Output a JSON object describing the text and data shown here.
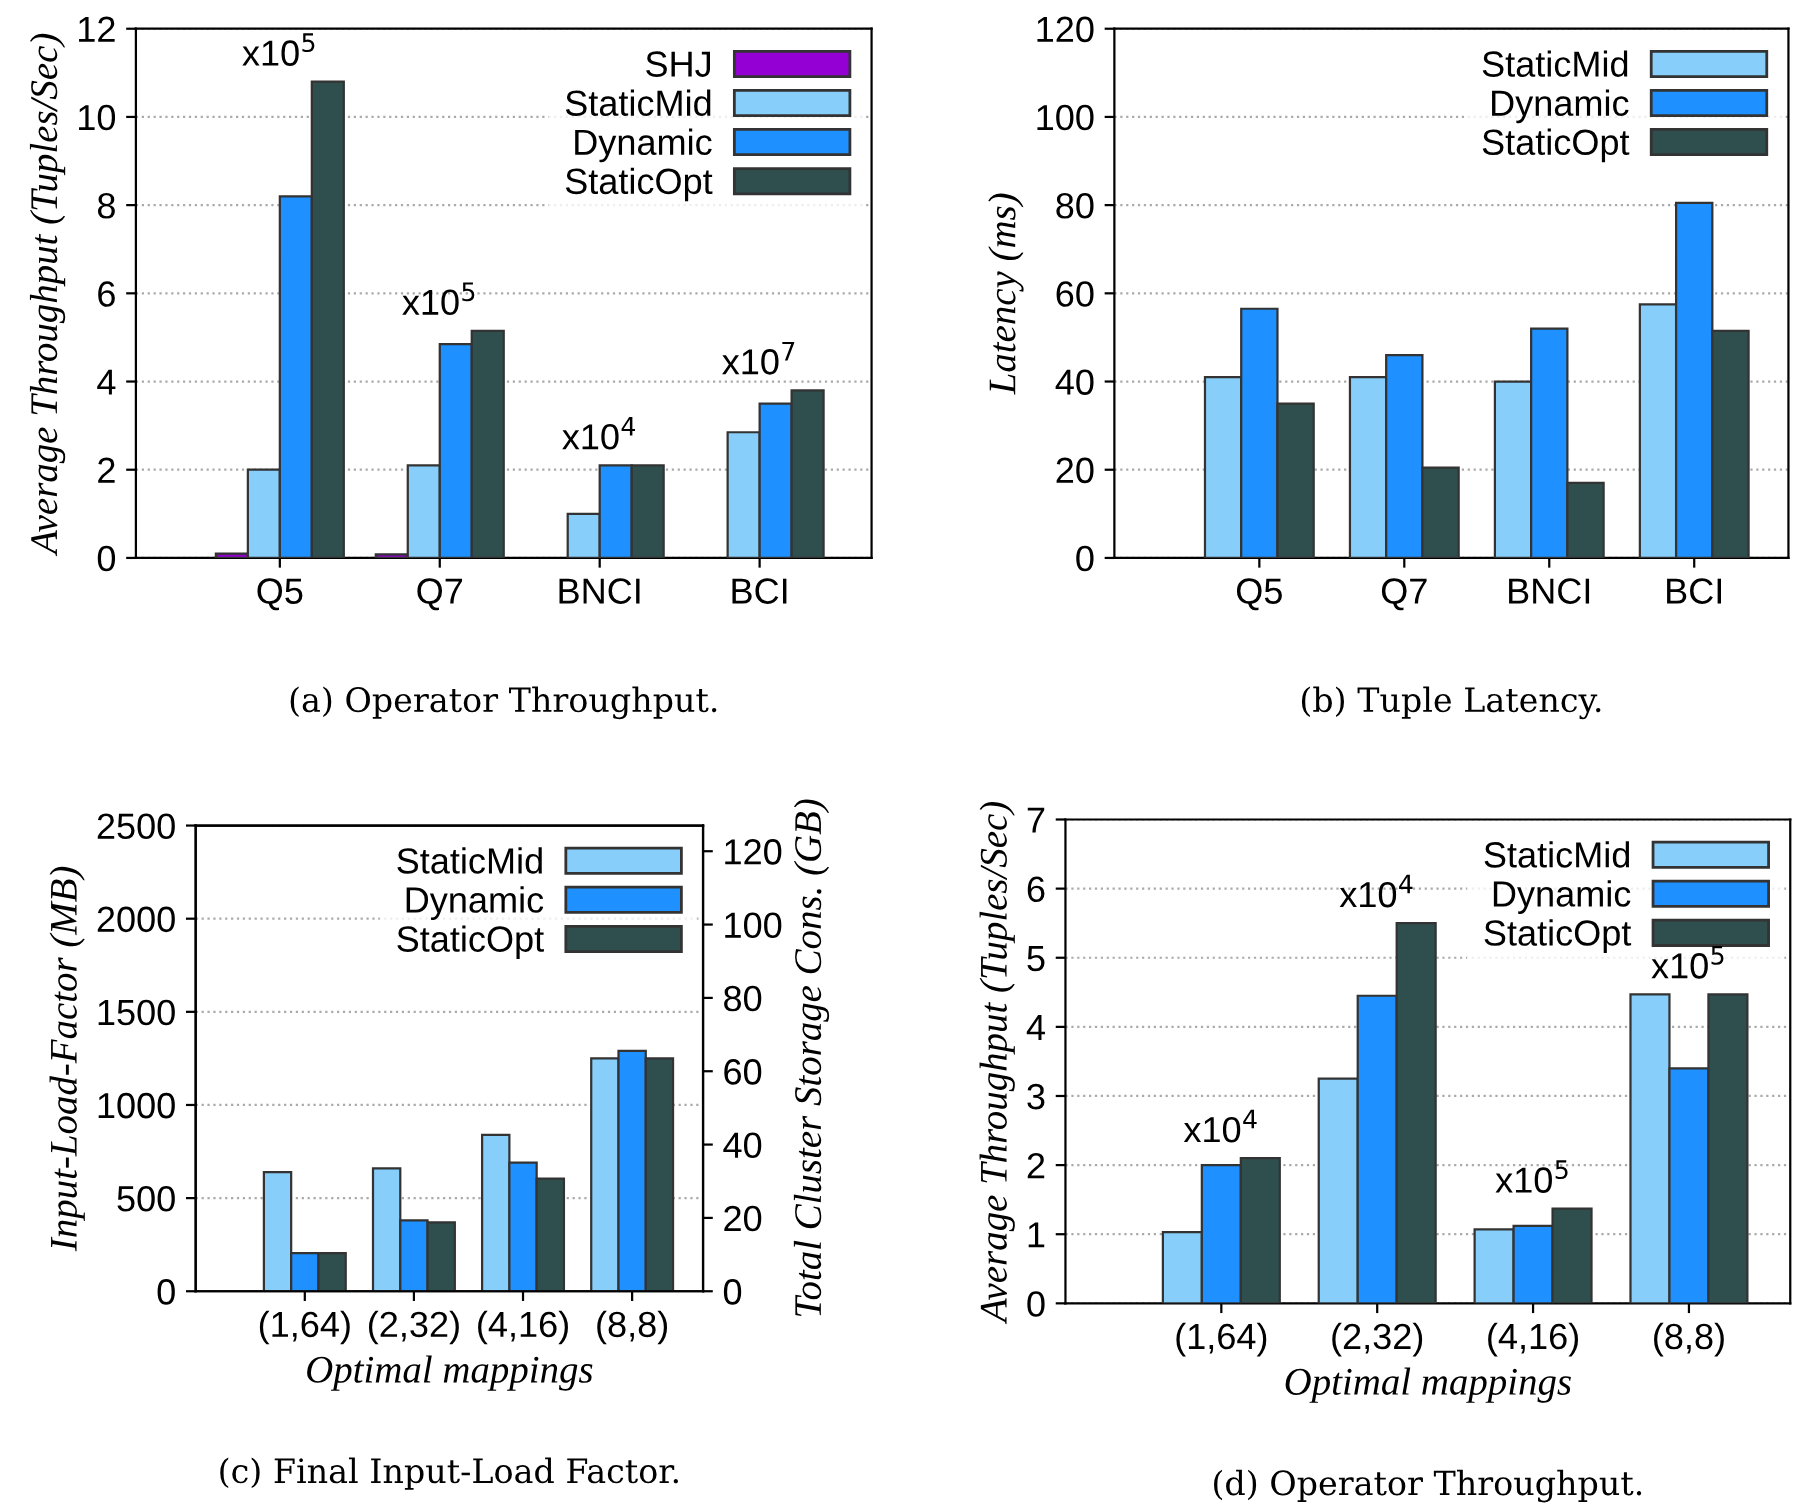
{
  "chart_data": [
    {
      "type": "bar",
      "ylabel": "Average Throughput (Tuples/Sec)",
      "categories": [
        "Q5",
        "Q7",
        "BNCI",
        "BCI"
      ],
      "ylim": [
        0,
        12
      ],
      "yticks": [
        0,
        2,
        4,
        6,
        8,
        10,
        12
      ],
      "grid": "y",
      "legend": "top right",
      "series": [
        {
          "name": "SHJ",
          "color": "#9400d3",
          "values": [
            0.1,
            0.08,
            null,
            null
          ]
        },
        {
          "name": "StaticMid",
          "color": "#87cefa",
          "values": [
            2.0,
            2.1,
            1.0,
            2.85
          ]
        },
        {
          "name": "Dynamic",
          "color": "#1e90ff",
          "values": [
            8.2,
            4.85,
            2.1,
            3.5
          ]
        },
        {
          "name": "StaticOpt",
          "color": "#2f4f4f",
          "values": [
            10.8,
            5.15,
            2.1,
            3.8
          ]
        }
      ],
      "annotations": [
        "x10$^{5}$",
        "x10$^{5}$",
        "x10$^{4}$",
        "x10$^{7}$",
        "(a) Operator Throughput."
      ]
    },
    {
      "type": "bar",
      "ylabel": "Latency (ms)",
      "categories": [
        "Q5",
        "Q7",
        "BNCI",
        "BCI"
      ],
      "ylim": [
        0,
        120
      ],
      "yticks": [
        0,
        20,
        40,
        60,
        80,
        100,
        120
      ],
      "grid": "y",
      "legend": "top right",
      "series": [
        {
          "name": "StaticMid",
          "color": "#87cefa",
          "values": [
            41,
            41,
            40,
            57.5
          ]
        },
        {
          "name": "Dynamic",
          "color": "#1e90ff",
          "values": [
            56.5,
            46,
            52,
            80.5
          ]
        },
        {
          "name": "StaticOpt",
          "color": "#2f4f4f",
          "values": [
            35,
            20.5,
            17,
            51.5
          ]
        }
      ],
      "annotations": [
        "(b) Tuple Latency."
      ]
    },
    {
      "type": "bar",
      "xlabel": "Optimal mappings",
      "ylabel": "Input-Load-Factor (MB)",
      "y2label": "Total Cluster Storage Cons. (GB)",
      "categories": [
        "(1,64)",
        "(2,32)",
        "(4,16)",
        "(8,8)"
      ],
      "ylim": [
        0,
        2500
      ],
      "yticks": [
        0,
        500,
        1000,
        1500,
        2000,
        2500
      ],
      "y2lim": [
        0,
        127
      ],
      "y2ticks": [
        0,
        20,
        40,
        60,
        80,
        100,
        120
      ],
      "grid": "y",
      "legend": "top right",
      "series": [
        {
          "name": "StaticMid",
          "color": "#87cefa",
          "values": [
            640,
            660,
            840,
            1250
          ]
        },
        {
          "name": "Dynamic",
          "color": "#1e90ff",
          "values": [
            205,
            380,
            690,
            1290
          ]
        },
        {
          "name": "StaticOpt",
          "color": "#2f4f4f",
          "values": [
            205,
            370,
            605,
            1250
          ]
        }
      ],
      "annotations": [
        "(c) Final Input-Load Factor."
      ]
    },
    {
      "type": "bar",
      "xlabel": "Optimal mappings",
      "ylabel": "Average Throughput (Tuples/Sec)",
      "categories": [
        "(1,64)",
        "(2,32)",
        "(4,16)",
        "(8,8)"
      ],
      "ylim": [
        0,
        7
      ],
      "yticks": [
        0,
        1,
        2,
        3,
        4,
        5,
        6,
        7
      ],
      "grid": "y",
      "legend": "top right",
      "series": [
        {
          "name": "StaticMid",
          "color": "#87cefa",
          "values": [
            1.03,
            3.25,
            1.07,
            4.47
          ]
        },
        {
          "name": "Dynamic",
          "color": "#1e90ff",
          "values": [
            2.0,
            4.45,
            1.12,
            3.4
          ]
        },
        {
          "name": "StaticOpt",
          "color": "#2f4f4f",
          "values": [
            2.1,
            5.5,
            1.37,
            4.47
          ]
        }
      ],
      "annotations": [
        "x10$^{4}$",
        "x10$^{4}$",
        "x10$^{5}$",
        "x10$^{5}$",
        "(d) Operator Throughput."
      ]
    }
  ]
}
